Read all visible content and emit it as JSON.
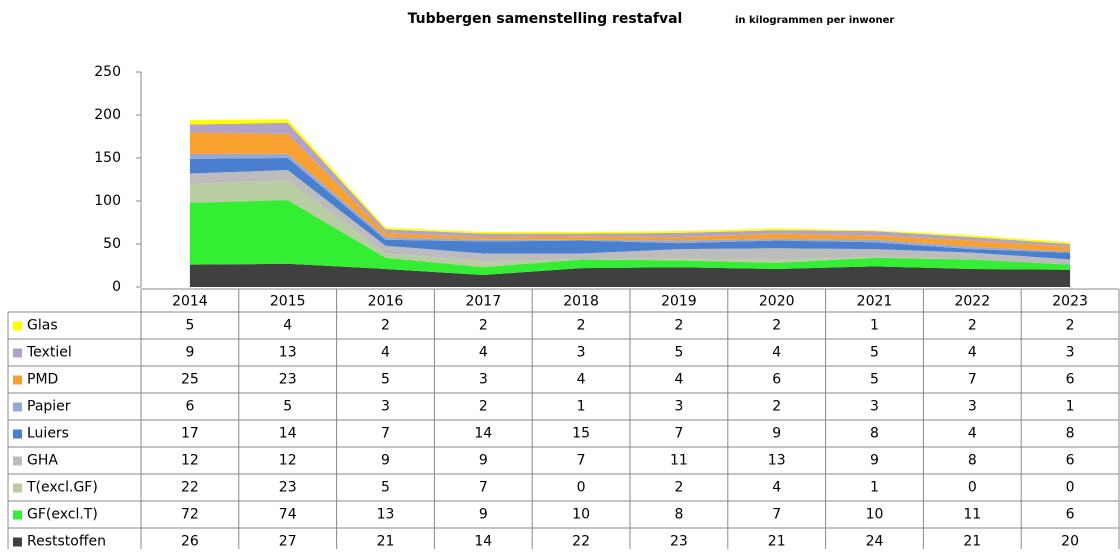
{
  "chart_data": {
    "type": "stacked_area",
    "title": "Tubbergen samenstelling restafval",
    "subtitle": "in kilogrammen per inwoner",
    "categories": [
      "2014",
      "2015",
      "2016",
      "2017",
      "2018",
      "2019",
      "2020",
      "2021",
      "2022",
      "2023"
    ],
    "ylim": [
      0,
      250
    ],
    "yticks": [
      0,
      50,
      100,
      150,
      200,
      250
    ],
    "series": [
      {
        "name": "Glas",
        "color": "#ffff00",
        "values": [
          5,
          4,
          2,
          2,
          2,
          2,
          2,
          1,
          2,
          2
        ]
      },
      {
        "name": "Textiel",
        "color": "#b3a2c7",
        "values": [
          9,
          13,
          4,
          4,
          3,
          5,
          4,
          5,
          4,
          3
        ]
      },
      {
        "name": "PMD",
        "color": "#f8a131",
        "values": [
          25,
          23,
          5,
          3,
          4,
          4,
          6,
          5,
          7,
          6
        ]
      },
      {
        "name": "Papier",
        "color": "#95a9d3",
        "values": [
          6,
          5,
          3,
          2,
          1,
          3,
          2,
          3,
          3,
          1
        ]
      },
      {
        "name": "Luiers",
        "color": "#4a7fcf",
        "values": [
          17,
          14,
          7,
          14,
          15,
          7,
          9,
          8,
          4,
          8
        ]
      },
      {
        "name": "GHA",
        "color": "#bcbcbc",
        "values": [
          12,
          12,
          9,
          9,
          7,
          11,
          13,
          9,
          8,
          6
        ]
      },
      {
        "name": "T(excl.GF)",
        "color": "#b9cda3",
        "values": [
          22,
          23,
          5,
          7,
          0,
          2,
          4,
          1,
          0,
          0
        ]
      },
      {
        "name": "GF(excl.T)",
        "color": "#33ee33",
        "values": [
          72,
          74,
          13,
          9,
          10,
          8,
          7,
          10,
          11,
          6
        ]
      },
      {
        "name": "Reststoffen",
        "color": "#404040",
        "values": [
          26,
          27,
          21,
          14,
          22,
          23,
          21,
          24,
          21,
          20
        ]
      }
    ]
  }
}
